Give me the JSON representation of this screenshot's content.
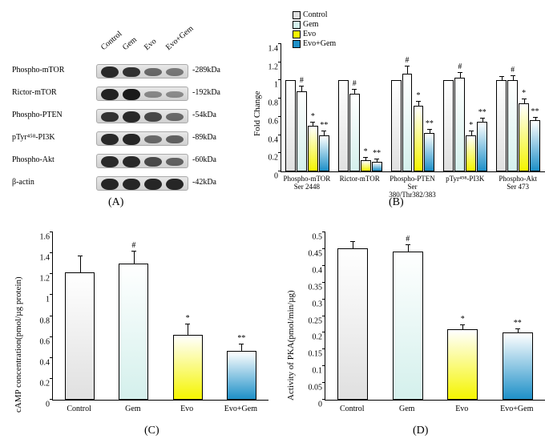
{
  "colors": {
    "control": "#e0e0e0",
    "gem": "#d4f0ec",
    "evo": "#f5f500",
    "evogem": "#1e90c8",
    "axis": "#000000",
    "bg": "#ffffff"
  },
  "legend_labels": {
    "control": "Control",
    "gem": "Gem",
    "evo": "Evo",
    "evogem": "Evo+Gem"
  },
  "panelA": {
    "label": "(A)",
    "lanes": [
      "Control",
      "Gem",
      "Evo",
      "Evo+Gem"
    ],
    "rows": [
      {
        "name": "Phospho-mTOR",
        "kda": "-289kDa",
        "intens": [
          0.9,
          0.85,
          0.5,
          0.4
        ]
      },
      {
        "name": "Rictor-mTOR",
        "kda": "-192kDa",
        "intens": [
          0.95,
          1.0,
          0.3,
          0.28
        ]
      },
      {
        "name": "Phospho-PTEN",
        "kda": "-54kDa",
        "intens": [
          0.85,
          0.9,
          0.7,
          0.5
        ]
      },
      {
        "name": "pTyr⁴⁵⁸-PI3K",
        "kda": "-89kDa",
        "intens": [
          0.9,
          0.92,
          0.5,
          0.55
        ]
      },
      {
        "name": "Phospho-Akt",
        "kda": "-60kDa",
        "intens": [
          0.9,
          0.9,
          0.7,
          0.55
        ]
      },
      {
        "name": "β-actin",
        "kda": "-42kDa",
        "intens": [
          0.92,
          0.92,
          0.92,
          0.92
        ]
      }
    ]
  },
  "panelB": {
    "label": "(B)",
    "ylabel": "Fold Change",
    "ylim": [
      0,
      1.4
    ],
    "ytick_step": 0.2,
    "groups": [
      {
        "name": "Phospho-mTOR Ser 2448",
        "bars": [
          {
            "k": "control",
            "v": 1.0,
            "e": 0
          },
          {
            "k": "gem",
            "v": 0.88,
            "e": 0.05,
            "s": "#"
          },
          {
            "k": "evo",
            "v": 0.5,
            "e": 0.04,
            "s": "*"
          },
          {
            "k": "evogem",
            "v": 0.4,
            "e": 0.04,
            "s": "**"
          }
        ]
      },
      {
        "name": "Rictor-mTOR",
        "bars": [
          {
            "k": "control",
            "v": 1.0,
            "e": 0
          },
          {
            "k": "gem",
            "v": 0.85,
            "e": 0.05,
            "s": "#"
          },
          {
            "k": "evo",
            "v": 0.12,
            "e": 0.03,
            "s": "*"
          },
          {
            "k": "evogem",
            "v": 0.11,
            "e": 0.02,
            "s": "**"
          }
        ]
      },
      {
        "name": "Phospho-PTEN Ser 380/Thr382/383",
        "bars": [
          {
            "k": "control",
            "v": 1.0,
            "e": 0
          },
          {
            "k": "gem",
            "v": 1.07,
            "e": 0.08,
            "s": "#"
          },
          {
            "k": "evo",
            "v": 0.72,
            "e": 0.05,
            "s": "*"
          },
          {
            "k": "evogem",
            "v": 0.42,
            "e": 0.04,
            "s": "**"
          }
        ]
      },
      {
        "name": "pTyr⁴⁵⁸-PI3K",
        "bars": [
          {
            "k": "control",
            "v": 1.0,
            "e": 0
          },
          {
            "k": "gem",
            "v": 1.03,
            "e": 0.05,
            "s": "#"
          },
          {
            "k": "evo",
            "v": 0.4,
            "e": 0.04,
            "s": "*"
          },
          {
            "k": "evogem",
            "v": 0.55,
            "e": 0.03,
            "s": "**"
          }
        ]
      },
      {
        "name": "Phospho-Akt Ser 473",
        "bars": [
          {
            "k": "control",
            "v": 1.0,
            "e": 0.04
          },
          {
            "k": "gem",
            "v": 1.0,
            "e": 0.05,
            "s": "#"
          },
          {
            "k": "evo",
            "v": 0.75,
            "e": 0.04,
            "s": "*"
          },
          {
            "k": "evogem",
            "v": 0.56,
            "e": 0.03,
            "s": "**"
          }
        ]
      }
    ]
  },
  "panelC": {
    "label": "(C)",
    "ylabel": "cAMP concentration(pmol/µg protein)",
    "ylim": [
      0,
      1.6
    ],
    "ytick_step": 0.2,
    "xlabels": [
      "Control",
      "Gem",
      "Evo",
      "Evo+Gem"
    ],
    "bars": [
      {
        "k": "control",
        "v": 1.22,
        "e": 0.15
      },
      {
        "k": "gem",
        "v": 1.3,
        "e": 0.12,
        "s": "#"
      },
      {
        "k": "evo",
        "v": 0.62,
        "e": 0.1,
        "s": "*"
      },
      {
        "k": "evogem",
        "v": 0.47,
        "e": 0.06,
        "s": "**"
      }
    ]
  },
  "panelD": {
    "label": "(D)",
    "ylabel": "Activity of PKA(pmol/min/µg)",
    "ylim": [
      0,
      0.5
    ],
    "ytick_step": 0.05,
    "xlabels": [
      "Control",
      "Gem",
      "Evo",
      "Evo+Gem"
    ],
    "bars": [
      {
        "k": "control",
        "v": 0.452,
        "e": 0.02
      },
      {
        "k": "gem",
        "v": 0.443,
        "e": 0.018,
        "s": "#"
      },
      {
        "k": "evo",
        "v": 0.21,
        "e": 0.012,
        "s": "*"
      },
      {
        "k": "evogem",
        "v": 0.2,
        "e": 0.01,
        "s": "**"
      }
    ]
  }
}
